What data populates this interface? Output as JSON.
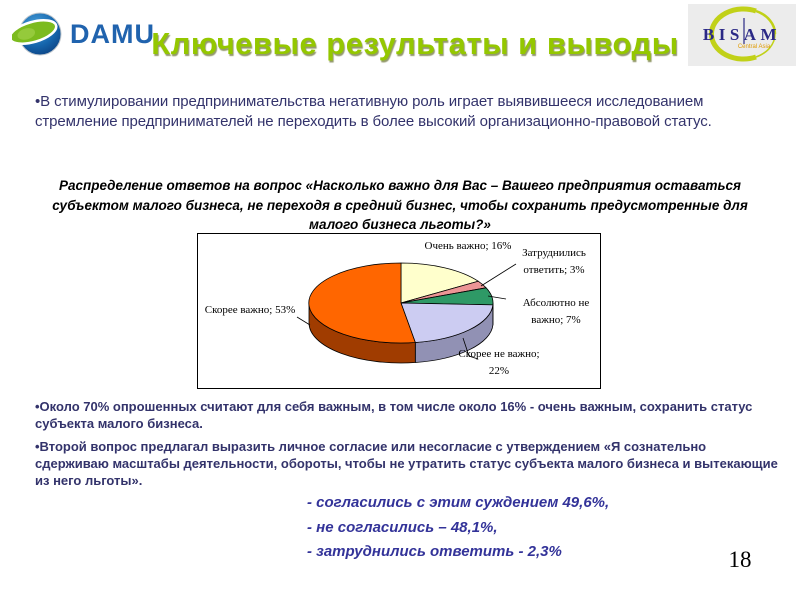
{
  "header": {
    "title": "Ключевые результаты и выводы",
    "damu_text": "DAMU",
    "bisam_name": "BISAM",
    "bisam_subtitle": "Central Asia"
  },
  "intro_bullet": "•В стимулировании предпринимательства негативную роль играет выявившееся исследованием стремление предпринимателей не переходить в более высокий организационно-правовой статус.",
  "chart_title": "Распределение ответов на вопрос «Насколько важно для Вас – Вашего предприятия оставаться субъектом малого бизнеса, не переходя в средний бизнес, чтобы сохранить предусмотренные для малого бизнеса льготы?»",
  "chart_data": {
    "type": "pie",
    "is_3d": true,
    "labels": [
      "Очень важно",
      "Затруднились ответить",
      "Абсолютно не важно",
      "Скорее не важно",
      "Скорее важно"
    ],
    "values": [
      16,
      3,
      7,
      22,
      53
    ],
    "unit": "%",
    "label_format": "{label}; {value}%",
    "colors": [
      "#FFFFCC",
      "#EC9595",
      "#2E9966",
      "#CCCCF2",
      "#FF6600"
    ],
    "side_colors": [
      "#C9C992",
      "#BA6F6F",
      "#1E6B46",
      "#9191B4",
      "#A03C00"
    ],
    "start_angle_deg": -90,
    "direction": "clockwise",
    "legend": "none"
  },
  "findings_bullets": [
    "•Около 70% опрошенных считают для себя важным, в том числе около 16% - очень важным, сохранить статус субъекта малого бизнеса.",
    "•Второй вопрос предлагал выразить личное согласие или несогласие с утверждением «Я сознательно сдерживаю масштабы деятельности, обороты, чтобы не утратить статус субъекта малого бизнеса и вытекающие из него льготы»."
  ],
  "conclusions": [
    "- согласились с этим суждением 49,6%,",
    "- не согласились – 48,1%,",
    "- затруднились ответить - 2,3%"
  ],
  "page": {
    "number": "18"
  },
  "accent_colors": {
    "title_green": "#94C700",
    "damu_blue": "#2063AE",
    "bisam_navy": "#2B2986",
    "bisam_orange": "#DF9A00",
    "body_text": "#33336B",
    "conclusion_text": "#333399"
  }
}
